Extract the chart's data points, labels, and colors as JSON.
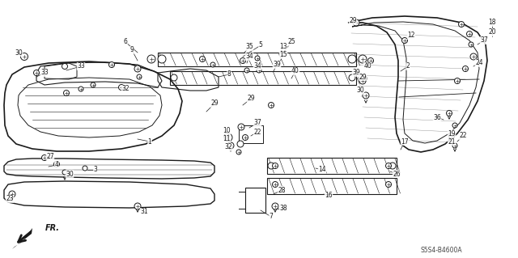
{
  "bg_color": "#ffffff",
  "diagram_code": "S5S4-B4600A",
  "fr_label": "FR.",
  "line_color": "#1a1a1a",
  "lw_main": 1.0,
  "lw_thin": 0.6,
  "lw_hatch": 0.5
}
